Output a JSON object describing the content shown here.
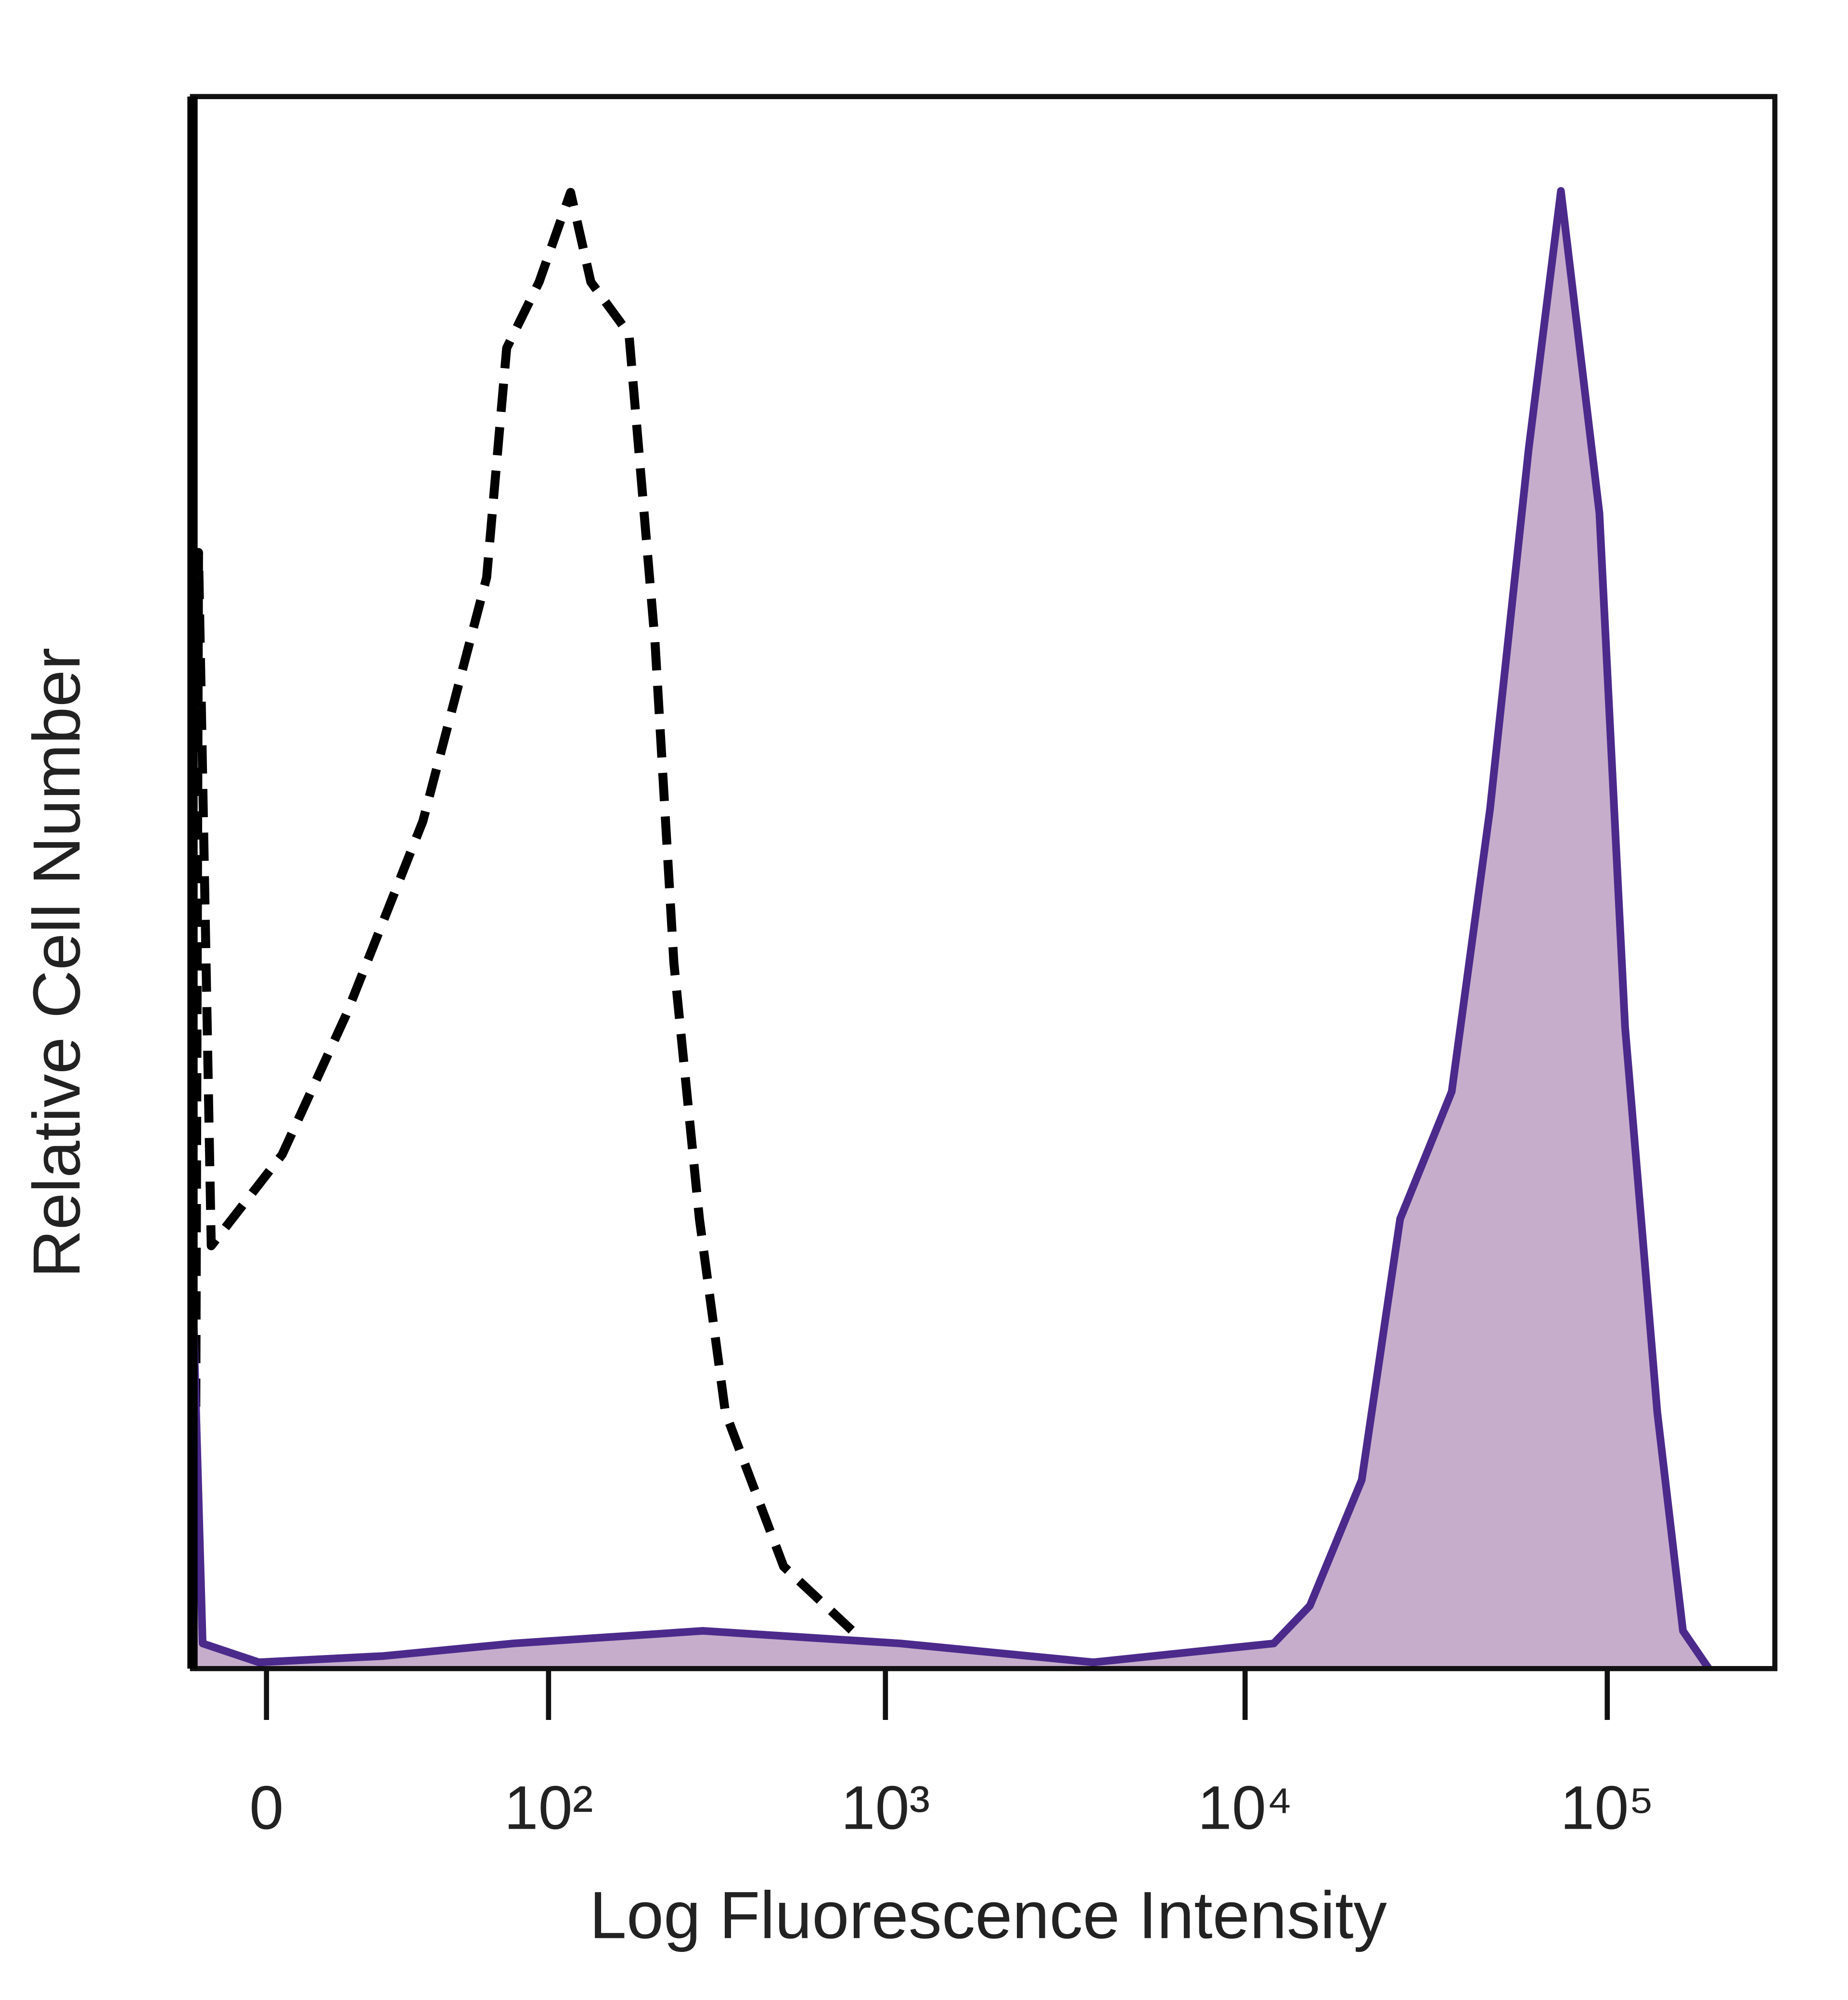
{
  "chart_data": {
    "type": "histogram-overlay",
    "xlabel": "Log Fluorescence Intensity",
    "ylabel": "Relative Cell Number",
    "xscale": "symlog",
    "linthresh": 20,
    "xlim": [
      -12,
      290000
    ],
    "ylim": [
      0,
      100
    ],
    "xticks": [
      {
        "value": 0,
        "label": "0"
      },
      {
        "value": 100,
        "label": "10²"
      },
      {
        "value": 1000,
        "label": "10³"
      },
      {
        "value": 10000,
        "label": "10⁴"
      },
      {
        "value": 100000,
        "label": "10⁵"
      }
    ],
    "series": [
      {
        "color": "#000000",
        "style": "dashed",
        "filled": false,
        "x": [
          -11.5,
          -10.8,
          -8.4,
          2.1,
          13.2,
          34,
          61,
          72,
          93,
          118,
          137,
          180,
          216,
          246,
          293,
          349,
          514,
          1004
        ],
        "values": [
          0,
          71,
          26.9,
          32.7,
          41.6,
          53.9,
          69.4,
          84,
          88.2,
          93.9,
          88.2,
          84.9,
          65.3,
          44.9,
          28.6,
          16.3,
          6.5,
          0.4
        ]
      },
      {
        "color": "#4b2a8c",
        "fill": "#c6adcb",
        "style": "solid",
        "filled": true,
        "x": [
          -12,
          -10,
          -1,
          22,
          76,
          300,
          1100,
          3800,
          12000,
          15100,
          21000,
          26800,
          37200,
          47500,
          60700,
          74500,
          95100,
          112000,
          137400,
          161800,
          190500
        ],
        "values": [
          24.5,
          1.6,
          0.4,
          0.8,
          1.6,
          2.4,
          1.6,
          0.4,
          1.6,
          4,
          12,
          28.6,
          36.7,
          54.7,
          77.6,
          94,
          73.5,
          40.8,
          16.3,
          2.4,
          0
        ]
      }
    ]
  }
}
